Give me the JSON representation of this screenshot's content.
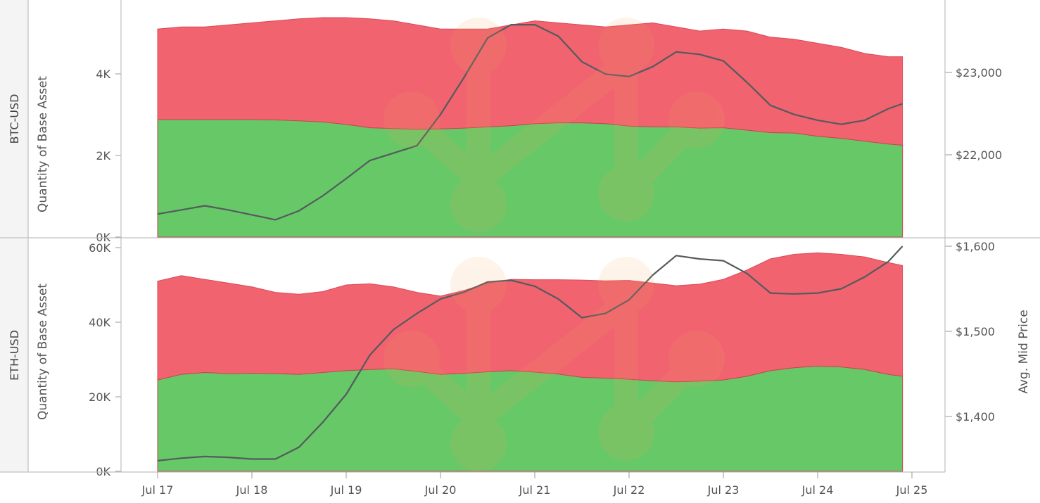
{
  "colors": {
    "ask": "#f0636f",
    "bid": "#66c867",
    "price_line": "#555a5e",
    "row_header_bg": "#f4f4f4",
    "frame": "#bfbfbf",
    "watermark": "#f7a95a"
  },
  "chart_data": {
    "type": "area",
    "x_ticks": [
      "Jul 17",
      "Jul 18",
      "Jul 19",
      "Jul 20",
      "Jul 21",
      "Jul 22",
      "Jul 23",
      "Jul 24",
      "Jul 25"
    ],
    "x": [
      0,
      0.25,
      0.5,
      0.75,
      1,
      1.25,
      1.5,
      1.75,
      2,
      2.25,
      2.5,
      2.75,
      3,
      3.25,
      3.5,
      3.75,
      4,
      4.25,
      4.5,
      4.75,
      5,
      5.25,
      5.5,
      5.75,
      6,
      6.25,
      6.5,
      6.75,
      7,
      7.25,
      7.5,
      7.75,
      7.9
    ],
    "panels": [
      {
        "row_label": "BTC-USD",
        "ylabel": "Quantity of Base Asset",
        "y_ticks": [
          "0K",
          "2K",
          "4K"
        ],
        "ylim": [
          0,
          5500
        ],
        "y2_ticks": [
          "$22,000",
          "$23,000"
        ],
        "y2_tick_values": [
          22000,
          23000
        ],
        "y2lim": [
          21000,
          23630
        ],
        "series": [
          {
            "role": "bid",
            "values": [
              2880,
              2880,
              2880,
              2880,
              2880,
              2870,
              2850,
              2820,
              2760,
              2680,
              2660,
              2640,
              2650,
              2670,
              2700,
              2730,
              2780,
              2800,
              2800,
              2780,
              2720,
              2700,
              2700,
              2670,
              2680,
              2620,
              2560,
              2550,
              2470,
              2420,
              2350,
              2280,
              2250
            ]
          },
          {
            "role": "ask",
            "values": [
              5100,
              5150,
              5150,
              5200,
              5250,
              5300,
              5350,
              5380,
              5380,
              5350,
              5300,
              5200,
              5100,
              5100,
              5100,
              5200,
              5300,
              5250,
              5200,
              5150,
              5200,
              5250,
              5150,
              5050,
              5100,
              5050,
              4900,
              4850,
              4750,
              4650,
              4500,
              4420,
              4420
            ]
          },
          {
            "role": "avg_mid_price",
            "values": [
              21280,
              21330,
              21380,
              21330,
              21270,
              21210,
              21320,
              21500,
              21710,
              21930,
              22020,
              22110,
              22490,
              22940,
              23420,
              23580,
              23580,
              23440,
              23130,
              22980,
              22950,
              23070,
              23250,
              23220,
              23140,
              22880,
              22600,
              22490,
              22420,
              22370,
              22420,
              22560,
              22620
            ]
          }
        ]
      },
      {
        "row_label": "ETH-USD",
        "ylabel": "Quantity of Base Asset",
        "y_ticks": [
          "0K",
          "20K",
          "40K",
          "60K"
        ],
        "ylim": [
          0,
          60000
        ],
        "y2_ticks": [
          "$1,400",
          "$1,500",
          "$1,600"
        ],
        "y2_tick_values": [
          1400,
          1500,
          1600
        ],
        "y2lim": [
          1338,
          1600
        ],
        "y2label": "Avg. Mid Price",
        "series": [
          {
            "role": "bid",
            "values": [
              24500,
              26000,
              26500,
              26200,
              26300,
              26200,
              26000,
              26500,
              27000,
              27300,
              27500,
              26800,
              26000,
              26300,
              26700,
              27000,
              26600,
              26100,
              25200,
              25000,
              24700,
              24300,
              24000,
              24200,
              24500,
              25500,
              27000,
              27800,
              28200,
              28000,
              27300,
              26000,
              25500
            ]
          },
          {
            "role": "ask",
            "values": [
              51000,
              52500,
              51500,
              50500,
              49500,
              48000,
              47500,
              48200,
              50000,
              50300,
              49500,
              48000,
              47000,
              48500,
              50500,
              51500,
              51400,
              51400,
              51300,
              51100,
              51200,
              50500,
              49800,
              50200,
              51500,
              54000,
              57000,
              58200,
              58600,
              58200,
              57500,
              56000,
              55200
            ]
          },
          {
            "role": "avg_mid_price",
            "values": [
              1348,
              1351,
              1353,
              1352,
              1350,
              1350,
              1364,
              1393,
              1426,
              1472,
              1502,
              1521,
              1538,
              1546,
              1558,
              1560,
              1553,
              1538,
              1516,
              1521,
              1537,
              1566,
              1589,
              1585,
              1583,
              1568,
              1545,
              1544,
              1545,
              1550,
              1564,
              1582,
              1600
            ]
          }
        ]
      }
    ]
  }
}
